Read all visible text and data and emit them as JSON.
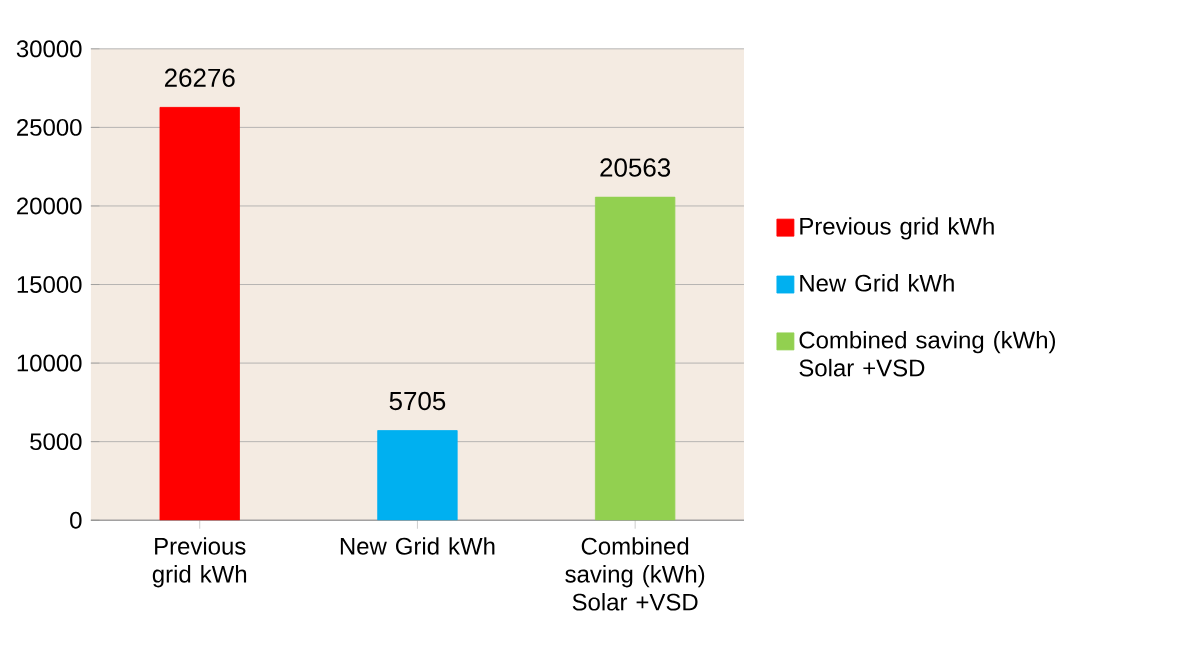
{
  "chart_data": {
    "type": "bar",
    "categories": [
      "Previous grid kWh",
      "New Grid kWh",
      "Combined saving (kWh) Solar +VSD"
    ],
    "series": [
      {
        "name": "Previous grid kWh",
        "color": "#ff0000",
        "values": [
          26276,
          null,
          null
        ]
      },
      {
        "name": "New Grid kWh",
        "color": "#00b0f0",
        "values": [
          null,
          5705,
          null
        ]
      },
      {
        "name": "Combined saving (kWh) Solar +VSD",
        "color": "#92d050",
        "values": [
          null,
          null,
          20563
        ]
      }
    ],
    "ylim": [
      0,
      30000
    ],
    "yticks": [
      0,
      5000,
      10000,
      15000,
      20000,
      25000,
      30000
    ],
    "grid": "y",
    "legend": "right",
    "data_labels": true
  }
}
